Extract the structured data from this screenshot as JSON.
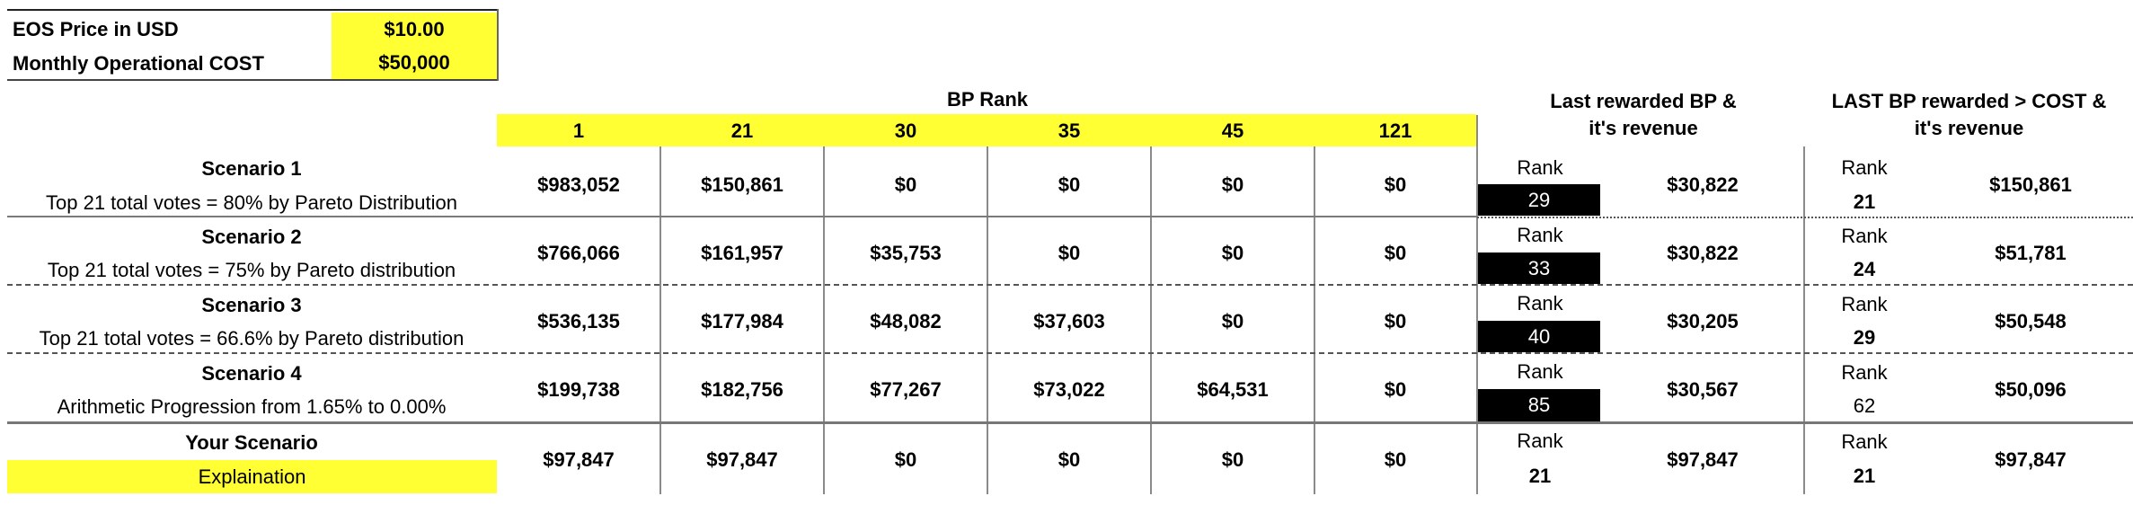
{
  "params": {
    "price_label": "EOS Price in USD",
    "price_value": "$10.00",
    "cost_label": "Monthly Operational COST",
    "cost_value": "$50,000"
  },
  "header": {
    "bp_rank_title": "BP Rank",
    "ranks": [
      "1",
      "21",
      "30",
      "35",
      "45",
      "121"
    ],
    "last_rewarded_line1": "Last rewarded BP &",
    "last_rewarded_line2": "it's revenue",
    "last_cost_line1": "LAST BP rewarded > COST &",
    "last_cost_line2": "it's revenue"
  },
  "rank_word": "Rank",
  "scenarios": [
    {
      "title": "Scenario 1",
      "desc": "Top 21 total votes = 80% by Pareto Distribution",
      "values": [
        "$983,052",
        "$150,861",
        "$0",
        "$0",
        "$0",
        "$0"
      ],
      "last_rank": "29",
      "last_revenue": "$30,822",
      "cost_rank": "21",
      "cost_revenue": "$150,861"
    },
    {
      "title": "Scenario 2",
      "desc": "Top 21 total votes = 75% by Pareto distribution",
      "values": [
        "$766,066",
        "$161,957",
        "$35,753",
        "$0",
        "$0",
        "$0"
      ],
      "last_rank": "33",
      "last_revenue": "$30,822",
      "cost_rank": "24",
      "cost_revenue": "$51,781"
    },
    {
      "title": "Scenario 3",
      "desc": "Top 21 total votes = 66.6% by Pareto distribution",
      "values": [
        "$536,135",
        "$177,984",
        "$48,082",
        "$37,603",
        "$0",
        "$0"
      ],
      "last_rank": "40",
      "last_revenue": "$30,205",
      "cost_rank": "29",
      "cost_revenue": "$50,548"
    },
    {
      "title": "Scenario 4",
      "desc": "Arithmetic Progression from 1.65% to 0.00%",
      "values": [
        "$199,738",
        "$182,756",
        "$77,267",
        "$73,022",
        "$64,531",
        "$0"
      ],
      "last_rank": "85",
      "last_revenue": "$30,567",
      "cost_rank": "62",
      "cost_revenue": "$50,096"
    }
  ],
  "your_scenario": {
    "title": "Your Scenario",
    "button": "Explaination",
    "values": [
      "$97,847",
      "$97,847",
      "$0",
      "$0",
      "$0",
      "$0"
    ],
    "last_rank": "21",
    "last_revenue": "$97,847",
    "cost_rank": "21",
    "cost_revenue": "$97,847"
  },
  "colors": {
    "highlight": "#ffff33",
    "rank_box": "#000000"
  }
}
